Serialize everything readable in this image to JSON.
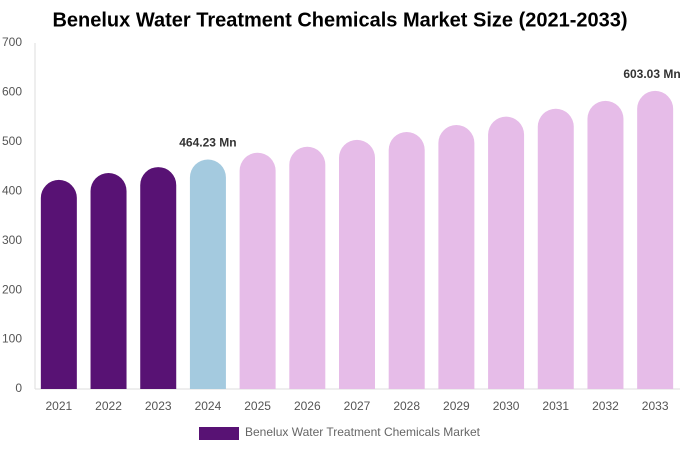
{
  "chart_data": {
    "type": "bar",
    "title": "Benelux Water Treatment Chemicals Market Size (2021-2033)",
    "categories": [
      "2021",
      "2022",
      "2023",
      "2024",
      "2025",
      "2026",
      "2027",
      "2028",
      "2029",
      "2030",
      "2031",
      "2032",
      "2033"
    ],
    "series": [
      {
        "name": "Benelux Water Treatment Chemicals Market",
        "color": "#581274",
        "values": [
          423,
          437,
          449,
          464.23,
          478,
          490,
          504,
          520,
          534,
          551,
          567,
          583,
          603.03
        ],
        "value_labels": [
          null,
          null,
          null,
          "464.23 Mn",
          null,
          null,
          null,
          null,
          null,
          null,
          null,
          null,
          "603.03 Mn"
        ],
        "colors": [
          "#581274",
          "#581274",
          "#581274",
          "#a4cadf",
          "#e6bce8",
          "#e6bce8",
          "#e6bce8",
          "#e6bce8",
          "#e6bce8",
          "#e6bce8",
          "#e6bce8",
          "#e6bce8",
          "#e6bce8"
        ]
      }
    ],
    "ylim": [
      0,
      700
    ],
    "yticks": [
      0,
      100,
      200,
      300,
      400,
      500,
      600,
      700
    ],
    "grid": false,
    "legend": "bottom"
  }
}
